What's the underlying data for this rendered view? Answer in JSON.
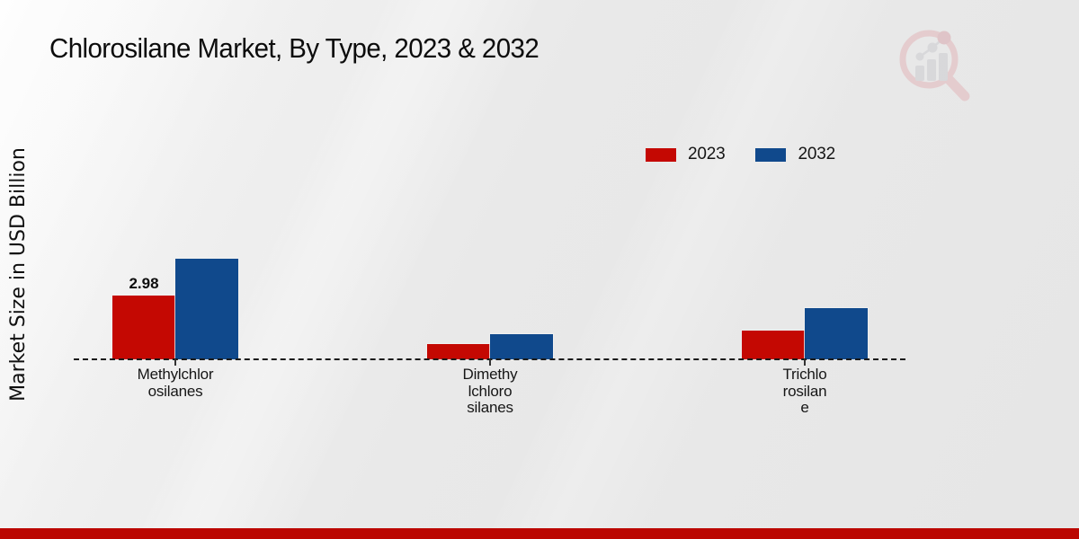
{
  "title": "Chlorosilane Market, By Type, 2023 & 2032",
  "y_axis_label": "Market Size in USD Billion",
  "legend": {
    "items": [
      {
        "label": "2023",
        "color": "#c40802"
      },
      {
        "label": "2032",
        "color": "#10498c"
      }
    ]
  },
  "watermark": {
    "name": "mrfr-magnifier-barchart-logo",
    "ring_color": "#e3b6ba",
    "bar_color": "#cbcbd0",
    "dot_color": "#d9a9ae"
  },
  "footer": {
    "accent_color": "#bb0701"
  },
  "chart_data": {
    "type": "bar",
    "title": "Chlorosilane Market, By Type, 2023 & 2032",
    "ylabel": "Market Size in USD Billion",
    "xlabel": "",
    "categories": [
      "Methylchlorosilanes",
      "Dimethylchlorosilanes",
      "Trichlorosilane"
    ],
    "category_display_lines": [
      [
        "Methylchlor",
        "osilanes"
      ],
      [
        "Dimethy",
        "lchloro",
        "silanes"
      ],
      [
        "Trichlo",
        "rosilan",
        "e"
      ]
    ],
    "series": [
      {
        "name": "2023",
        "color": "#c40802",
        "values": [
          2.98,
          0.73,
          1.36
        ]
      },
      {
        "name": "2032",
        "color": "#10498c",
        "values": [
          4.7,
          1.18,
          2.4
        ]
      }
    ],
    "data_labels": [
      {
        "series_index": 0,
        "category_index": 0,
        "text": "2.98"
      }
    ],
    "ylim": [
      0,
      5
    ],
    "grid": false,
    "legend_position": "upper-right",
    "baseline_style": "dashed",
    "units": "USD Billion"
  }
}
